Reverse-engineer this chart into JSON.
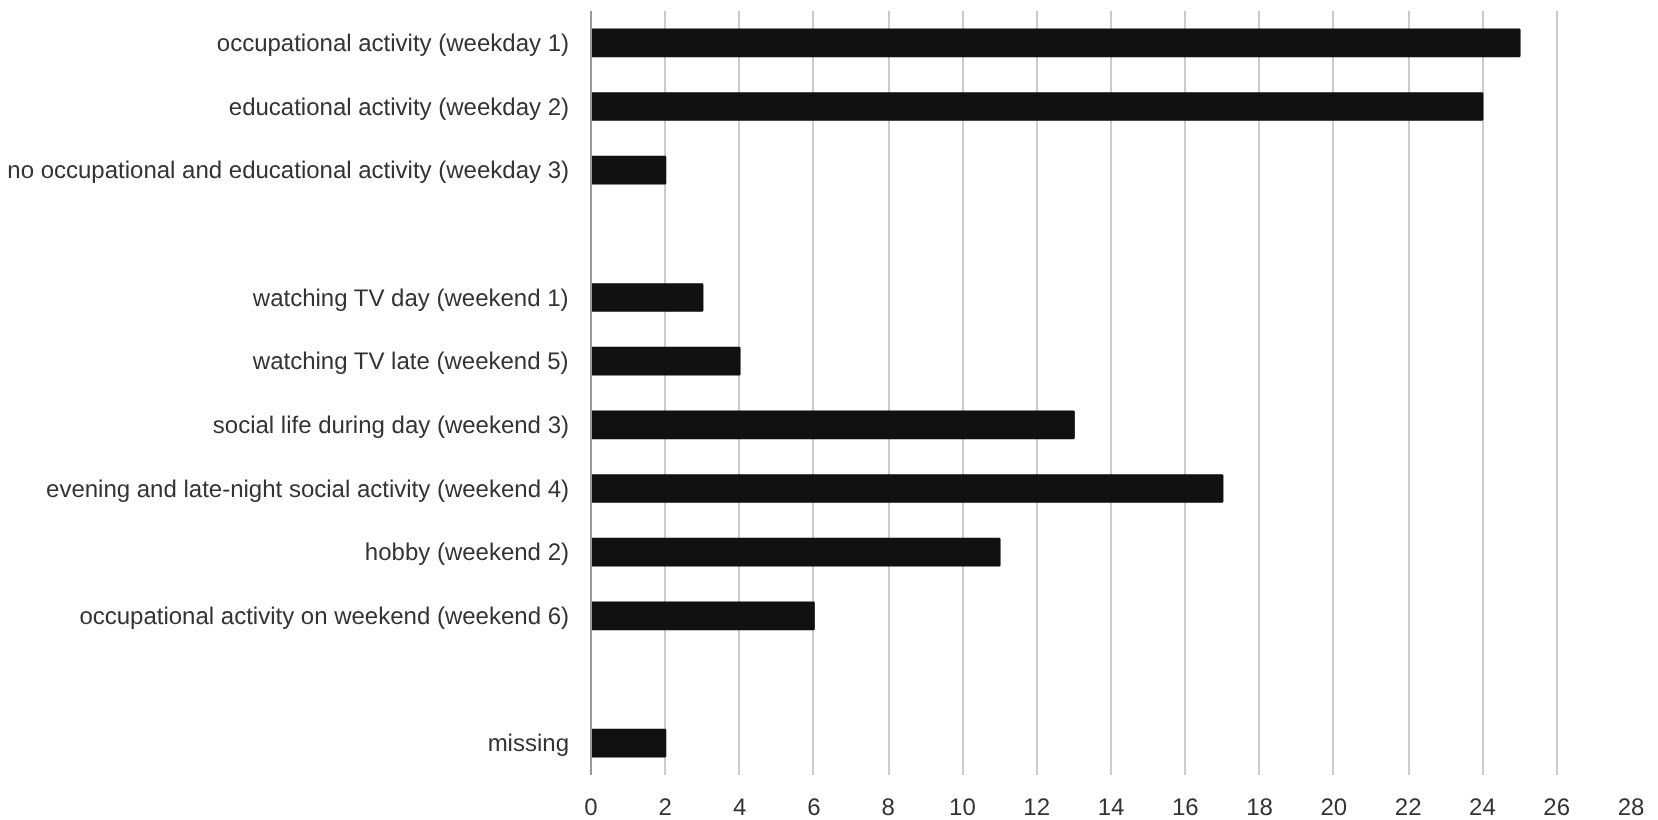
{
  "chart_data": {
    "type": "bar",
    "orientation": "horizontal",
    "categories": [
      "occupational activity (weekday 1)",
      "educational activity (weekday 2)",
      "no occupational and educational activity (weekday 3)",
      null,
      "watching TV day (weekend 1)",
      "watching TV late (weekend 5)",
      "social life during day (weekend 3)",
      "evening and late-night social activity (weekend 4)",
      "hobby (weekend 2)",
      "occupational activity on weekend (weekend 6)",
      null,
      "missing"
    ],
    "values": [
      25,
      24,
      2,
      null,
      3,
      4,
      13,
      17,
      11,
      6,
      null,
      2
    ],
    "color": "#111111",
    "xlim": [
      0,
      28
    ],
    "xticks": [
      0,
      2,
      4,
      6,
      8,
      10,
      12,
      14,
      16,
      18,
      20,
      22,
      24,
      26,
      28
    ],
    "grid": "x"
  }
}
